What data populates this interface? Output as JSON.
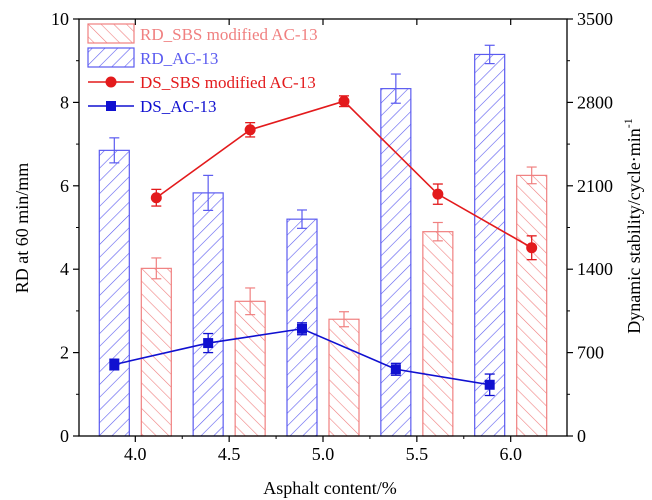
{
  "chart_data": {
    "type": "bar",
    "categories": [
      "4.0",
      "4.5",
      "5.0",
      "5.5",
      "6.0"
    ],
    "x": [
      4.0,
      4.5,
      5.0,
      5.5,
      6.0
    ],
    "xlabel": "Asphalt content/%",
    "ylabel_left": "RD at 60 min/mm",
    "ylabel_right": "Dynamic stability/cycle·min",
    "ylabel_right_sup": "-1",
    "ylim_left": [
      0,
      10
    ],
    "ylim_right": [
      0,
      3500
    ],
    "xlim": [
      3.7,
      6.3
    ],
    "yticks_left": [
      "0",
      "2",
      "4",
      "6",
      "8",
      "10"
    ],
    "yticks_right": [
      "0",
      "700",
      "1400",
      "2100",
      "2800",
      "3500"
    ],
    "grid": false,
    "legend_position": "top-left",
    "bar_series": [
      {
        "name": "RD_SBS modified AC-13",
        "axis": "left",
        "values": [
          4.02,
          3.23,
          2.8,
          4.9,
          6.25
        ],
        "errors": [
          0.25,
          0.32,
          0.18,
          0.22,
          0.2
        ],
        "color": "#f08080"
      },
      {
        "name": "RD_AC-13",
        "axis": "left",
        "values": [
          6.85,
          5.83,
          5.2,
          8.33,
          9.15
        ],
        "errors": [
          0.3,
          0.42,
          0.22,
          0.35,
          0.22
        ],
        "color": "#5b5bf0"
      }
    ],
    "line_series": [
      {
        "name": "DS_SBS modified AC-13",
        "axis": "right",
        "marker": "circle",
        "values": [
          2000,
          2570,
          2810,
          2030,
          1580
        ],
        "errors": [
          70,
          60,
          45,
          85,
          100
        ],
        "color": "#e31a1c"
      },
      {
        "name": "DS_AC-13",
        "axis": "right",
        "marker": "square",
        "values": [
          600,
          780,
          900,
          560,
          430
        ],
        "errors": [
          45,
          80,
          50,
          50,
          90
        ],
        "color": "#1010d0"
      }
    ]
  }
}
